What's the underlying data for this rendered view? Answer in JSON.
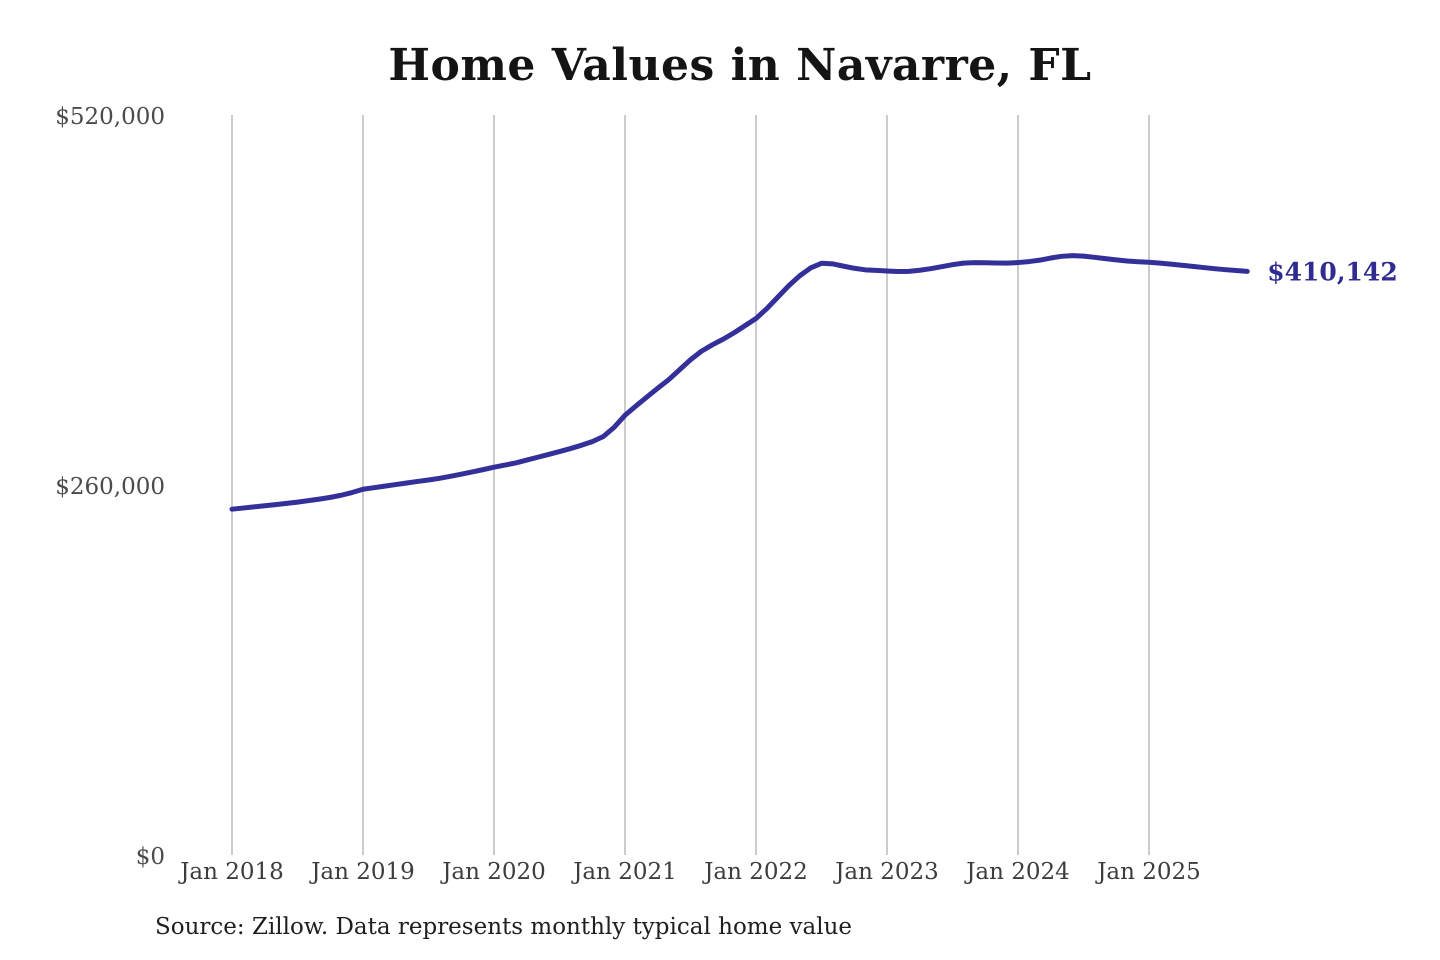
{
  "chart_data": {
    "type": "line",
    "title": "Home Values in Navarre, FL",
    "source_note": "Source: Zillow. Data represents monthly typical home value",
    "end_label": "$410,142",
    "latest_value": 410142,
    "xlabel": "",
    "ylabel": "",
    "ylim": [
      0,
      520000
    ],
    "grid": "vertical-only",
    "legend": "none",
    "y_ticks": [
      {
        "label": "$0",
        "value": 0
      },
      {
        "label": "$260,000",
        "value": 260000
      },
      {
        "label": "$520,000",
        "value": 520000
      }
    ],
    "x_ticks": [
      {
        "label": "Jan 2018",
        "month_index": 0
      },
      {
        "label": "Jan 2019",
        "month_index": 12
      },
      {
        "label": "Jan 2020",
        "month_index": 24
      },
      {
        "label": "Jan 2021",
        "month_index": 36
      },
      {
        "label": "Jan 2022",
        "month_index": 48
      },
      {
        "label": "Jan 2023",
        "month_index": 60
      },
      {
        "label": "Jan 2024",
        "month_index": 72
      },
      {
        "label": "Jan 2025",
        "month_index": 84
      }
    ],
    "series": [
      {
        "name": "Monthly typical home value",
        "months": [
          "2018-01",
          "2018-02",
          "2018-03",
          "2018-04",
          "2018-05",
          "2018-06",
          "2018-07",
          "2018-08",
          "2018-09",
          "2018-10",
          "2018-11",
          "2018-12",
          "2019-01",
          "2019-02",
          "2019-03",
          "2019-04",
          "2019-05",
          "2019-06",
          "2019-07",
          "2019-08",
          "2019-09",
          "2019-10",
          "2019-11",
          "2019-12",
          "2020-01",
          "2020-02",
          "2020-03",
          "2020-04",
          "2020-05",
          "2020-06",
          "2020-07",
          "2020-08",
          "2020-09",
          "2020-10",
          "2020-11",
          "2020-12",
          "2021-01",
          "2021-02",
          "2021-03",
          "2021-04",
          "2021-05",
          "2021-06",
          "2021-07",
          "2021-08",
          "2021-09",
          "2021-10",
          "2021-11",
          "2021-12",
          "2022-01",
          "2022-02",
          "2022-03",
          "2022-04",
          "2022-05",
          "2022-06",
          "2022-07",
          "2022-08",
          "2022-09",
          "2022-10",
          "2022-11",
          "2022-12",
          "2023-01",
          "2023-02",
          "2023-03",
          "2023-04",
          "2023-05",
          "2023-06",
          "2023-07",
          "2023-08",
          "2023-09",
          "2023-10",
          "2023-11",
          "2023-12",
          "2024-01",
          "2024-02",
          "2024-03",
          "2024-04",
          "2024-05",
          "2024-06",
          "2024-07",
          "2024-08",
          "2024-09",
          "2024-10",
          "2024-11",
          "2024-12",
          "2025-01",
          "2025-02",
          "2025-03",
          "2025-04",
          "2025-05",
          "2025-06",
          "2025-07",
          "2025-08",
          "2025-09",
          "2025-10"
        ],
        "values": [
          243000,
          243800,
          244600,
          245400,
          246200,
          247100,
          248000,
          249000,
          250100,
          251300,
          252800,
          254700,
          257000,
          258100,
          259200,
          260300,
          261400,
          262500,
          263500,
          264700,
          266100,
          267600,
          269200,
          270800,
          272500,
          274000,
          275500,
          277500,
          279500,
          281500,
          283500,
          285600,
          287900,
          290500,
          294000,
          300500,
          309000,
          315500,
          321800,
          328000,
          334000,
          341000,
          348000,
          354000,
          358500,
          362500,
          367000,
          372000,
          377000,
          384000,
          392000,
          400000,
          407000,
          412500,
          415800,
          415400,
          413800,
          412300,
          411200,
          410800,
          410400,
          410000,
          410100,
          410900,
          412000,
          413400,
          414800,
          415900,
          416300,
          416200,
          416000,
          415900,
          416300,
          417000,
          418000,
          419500,
          420700,
          421200,
          420800,
          420000,
          419100,
          418200,
          417400,
          416900,
          416500,
          415900,
          415200,
          414400,
          413600,
          412800,
          412000,
          411300,
          410700,
          410142
        ]
      }
    ]
  },
  "colors": {
    "background": "#ffffff",
    "line": "#34309a",
    "end_label_text": "#302b90",
    "grid": "#cccccc",
    "x_axis_text": "#3d3d3d",
    "y_axis_text": "#4b4b4b",
    "title_text": "#141414",
    "source_text": "#1f1f1f"
  }
}
